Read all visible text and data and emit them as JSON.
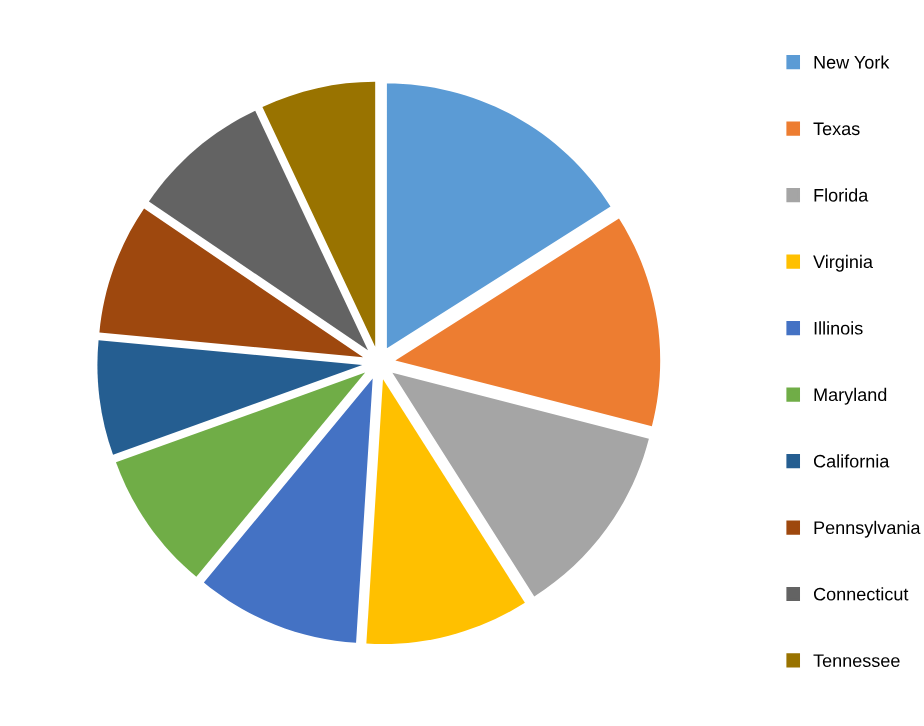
{
  "chart_data": {
    "type": "pie",
    "categories": [
      "New York",
      "Texas",
      "Florida",
      "Virginia",
      "Illinois",
      "Maryland",
      "California",
      "Pennsylvania",
      "Connecticut",
      "Tennessee"
    ],
    "values": [
      16,
      13,
      12,
      10,
      10,
      8.5,
      7,
      8,
      8.5,
      7
    ],
    "colors": [
      "#5b9bd5",
      "#ed7d31",
      "#a5a5a5",
      "#ffc000",
      "#4472c4",
      "#70ad47",
      "#255e91",
      "#9e480e",
      "#636363",
      "#997300"
    ],
    "legend": "right"
  }
}
